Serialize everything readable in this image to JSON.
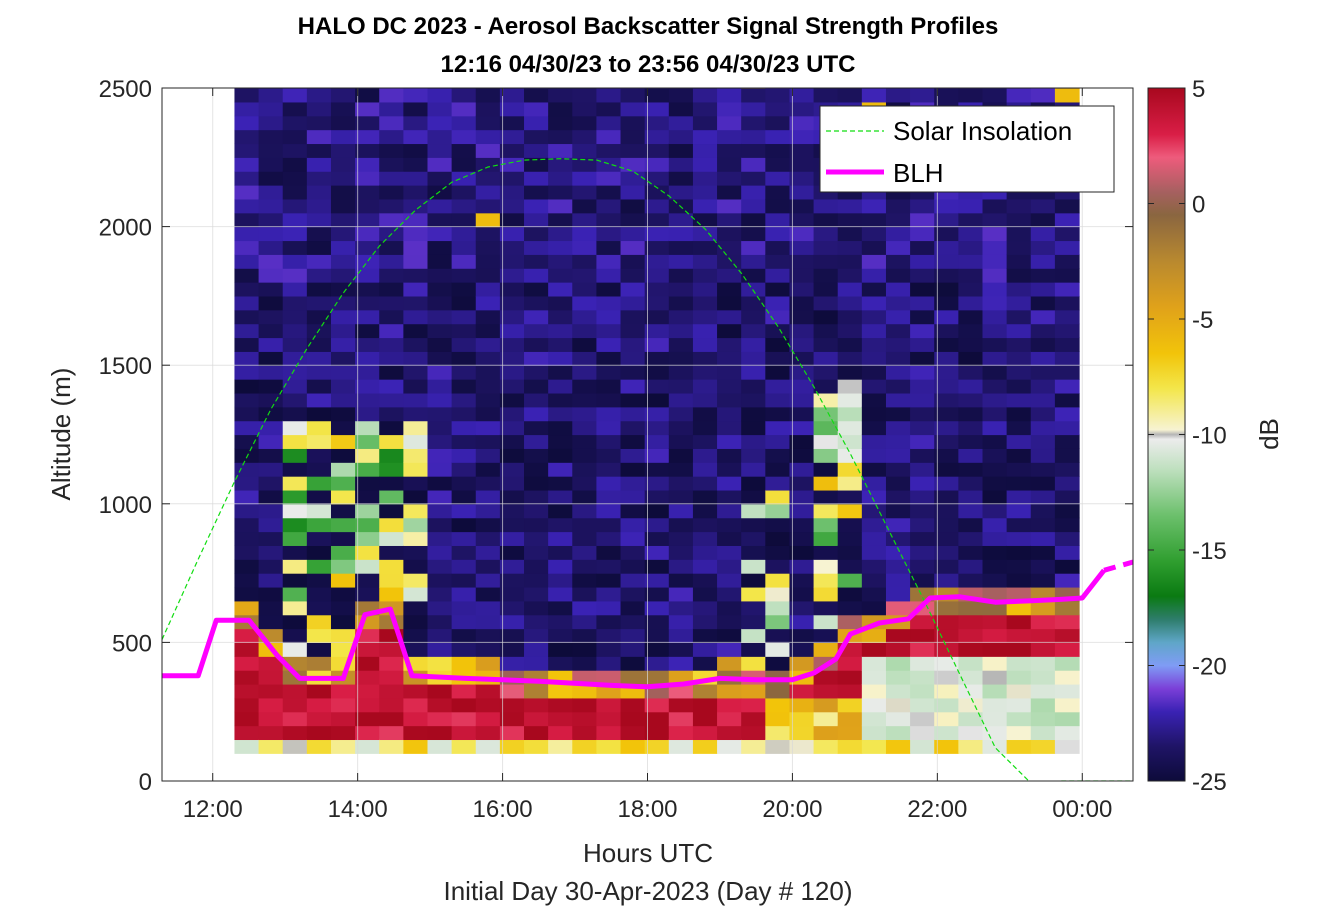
{
  "chart_data": {
    "type": "heatmap",
    "title": "HALO DC 2023 - Aerosol Backscatter Signal Strength Profiles",
    "subtitle": "12:16 04/30/23 to 23:56 04/30/23  UTC",
    "xlabel": "Hours UTC",
    "ylabel": "Altitude (m)",
    "footer": "Initial Day 30-Apr-2023 (Day # 120)",
    "colorbar_label": "dB",
    "xlim": [
      11.3,
      24.7
    ],
    "ylim": [
      0,
      2500
    ],
    "x_ticks": [
      {
        "v": 12,
        "label": "12:00"
      },
      {
        "v": 14,
        "label": "14:00"
      },
      {
        "v": 16,
        "label": "16:00"
      },
      {
        "v": 18,
        "label": "18:00"
      },
      {
        "v": 20,
        "label": "20:00"
      },
      {
        "v": 22,
        "label": "22:00"
      },
      {
        "v": 24,
        "label": "00:00"
      }
    ],
    "y_ticks": [
      {
        "v": 0,
        "label": "0"
      },
      {
        "v": 500,
        "label": "500"
      },
      {
        "v": 1000,
        "label": "1000"
      },
      {
        "v": 1500,
        "label": "1500"
      },
      {
        "v": 2000,
        "label": "2000"
      },
      {
        "v": 2500,
        "label": "2500"
      }
    ],
    "colorbar_ticks": [
      {
        "v": 5,
        "label": "5"
      },
      {
        "v": 0,
        "label": "0"
      },
      {
        "v": -5,
        "label": "-5"
      },
      {
        "v": -10,
        "label": "-10"
      },
      {
        "v": -15,
        "label": "-15"
      },
      {
        "v": -20,
        "label": "-20"
      },
      {
        "v": -25,
        "label": "-25"
      }
    ],
    "clim": [
      -25,
      5
    ],
    "colormap": [
      {
        "v": -25,
        "c": "#0d0b3a"
      },
      {
        "v": -23.5,
        "c": "#1f1466"
      },
      {
        "v": -22,
        "c": "#3a22b4"
      },
      {
        "v": -21,
        "c": "#7b3fd8"
      },
      {
        "v": -20,
        "c": "#7f9cf5"
      },
      {
        "v": -19,
        "c": "#5fa6c8"
      },
      {
        "v": -18,
        "c": "#2e7d6b"
      },
      {
        "v": -17,
        "c": "#0a7a12"
      },
      {
        "v": -15.5,
        "c": "#2f9e2f"
      },
      {
        "v": -13.5,
        "c": "#6cc06c"
      },
      {
        "v": -11.5,
        "c": "#bfe0bf"
      },
      {
        "v": -10.2,
        "c": "#ececec"
      },
      {
        "v": -10,
        "c": "#b5b5b5"
      },
      {
        "v": -9.8,
        "c": "#f7f3d2"
      },
      {
        "v": -8,
        "c": "#f3e64a"
      },
      {
        "v": -6.5,
        "c": "#f2c40a"
      },
      {
        "v": -4.5,
        "c": "#e0a21a"
      },
      {
        "v": -2.5,
        "c": "#b9892f"
      },
      {
        "v": -0.5,
        "c": "#8a6640"
      },
      {
        "v": 0.5,
        "c": "#a66060"
      },
      {
        "v": 2,
        "c": "#ee5b7c"
      },
      {
        "v": 3,
        "c": "#d91e46"
      },
      {
        "v": 5,
        "c": "#a8081e"
      }
    ],
    "grid": true,
    "legend_position": "top-right",
    "heatmap": {
      "x_start": 12.3,
      "time_step_h": 0.333,
      "alt_step_m": 50,
      "n_times": 35,
      "n_alts": 50,
      "alt_min": 100
    },
    "series": [
      {
        "name": "Solar Insolation",
        "style": "dashed",
        "color": "#11dd11",
        "x": [
          11.3,
          11.8,
          12.3,
          12.8,
          13.3,
          13.8,
          14.3,
          14.8,
          15.3,
          15.8,
          16.3,
          16.8,
          17.3,
          17.8,
          18.3,
          18.8,
          19.3,
          19.8,
          20.3,
          20.8,
          21.3,
          21.8,
          22.3,
          22.8,
          23.3,
          23.7,
          24.0,
          24.7
        ],
        "y": [
          510,
          800,
          1080,
          1340,
          1560,
          1760,
          1930,
          2060,
          2160,
          2215,
          2240,
          2245,
          2240,
          2200,
          2110,
          1990,
          1830,
          1640,
          1420,
          1180,
          920,
          660,
          390,
          120,
          -10,
          0,
          0,
          0
        ]
      },
      {
        "name": "BLH",
        "style": "solid",
        "color": "#ff00ff",
        "x": [
          11.3,
          11.8,
          12.05,
          12.5,
          12.9,
          13.2,
          13.5,
          13.8,
          14.1,
          14.45,
          14.75,
          15.5,
          16.5,
          17.5,
          18.0,
          18.5,
          19.0,
          19.5,
          20.0,
          20.3,
          20.6,
          20.8,
          21.2,
          21.6,
          21.9,
          22.3,
          22.8,
          23.3,
          23.7,
          24.0,
          24.3
        ],
        "y": [
          380,
          380,
          580,
          580,
          450,
          370,
          370,
          370,
          600,
          620,
          380,
          370,
          360,
          345,
          340,
          350,
          370,
          365,
          365,
          390,
          440,
          530,
          570,
          585,
          660,
          665,
          645,
          650,
          655,
          660,
          760
        ]
      },
      {
        "name": "",
        "style": "dashed",
        "color": "#ff00ff",
        "x": [
          24.3,
          24.7
        ],
        "y": [
          760,
          790
        ]
      }
    ]
  }
}
